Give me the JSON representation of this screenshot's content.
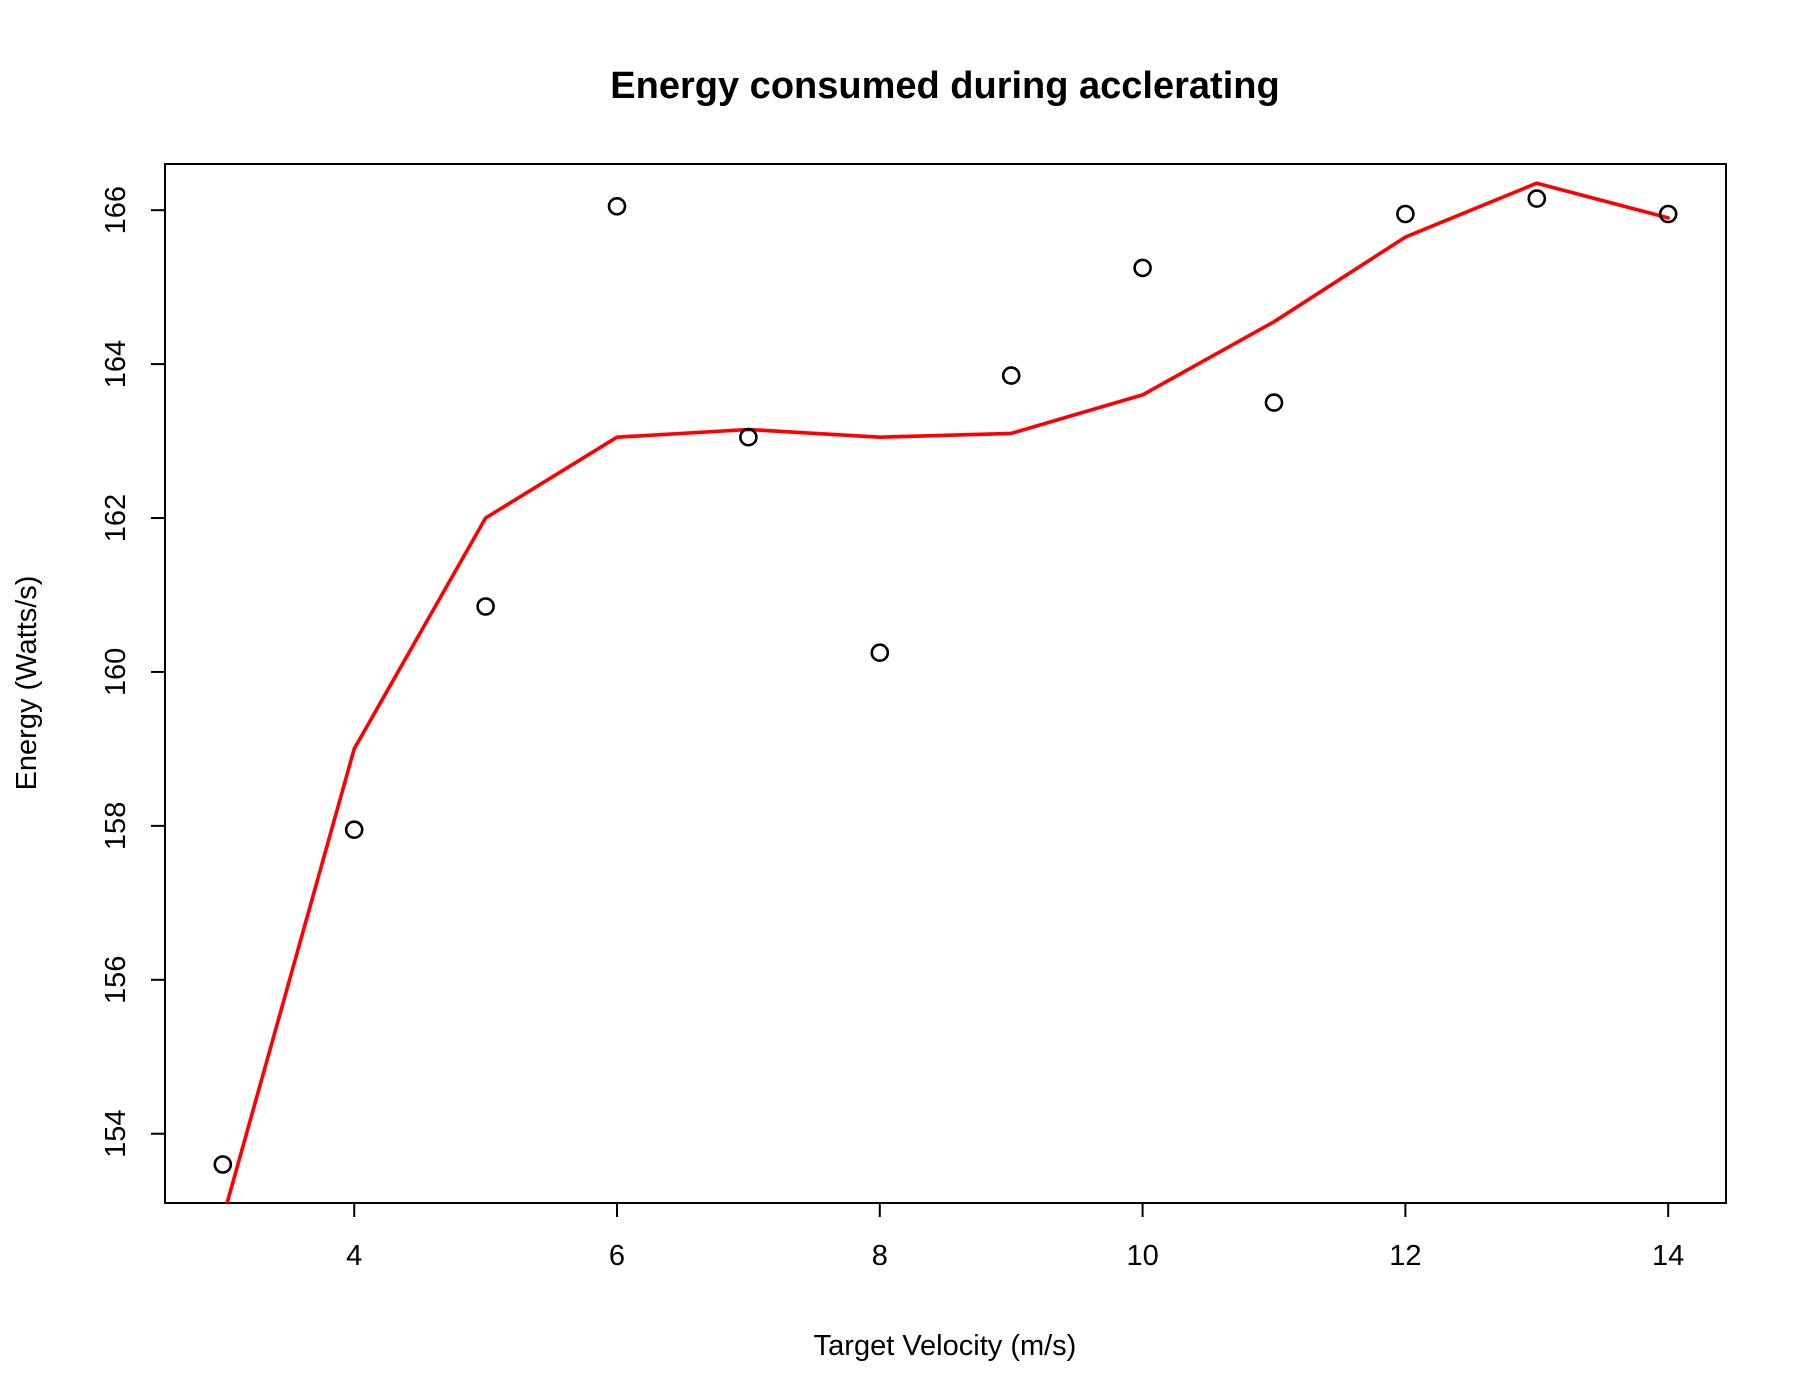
{
  "chart_data": {
    "type": "scatter",
    "title": "Energy consumed during acclerating",
    "xlabel": "Target Velocity (m/s)",
    "ylabel": "Energy (Watts/s)",
    "xlim": [
      2.56,
      14.44
    ],
    "ylim": [
      153.1,
      166.6
    ],
    "xticks": [
      4,
      6,
      8,
      10,
      12,
      14
    ],
    "yticks": [
      154,
      156,
      158,
      160,
      162,
      164,
      166
    ],
    "grid": false,
    "legend": "none",
    "series": [
      {
        "type": "points",
        "marker": "open-circle",
        "color": "#000000",
        "x": [
          3,
          4,
          5,
          6,
          7,
          8,
          9,
          10,
          11,
          12,
          13,
          14
        ],
        "y": [
          153.6,
          157.95,
          160.85,
          166.05,
          163.05,
          160.25,
          163.85,
          165.25,
          163.5,
          165.95,
          166.15,
          165.95
        ]
      },
      {
        "type": "line",
        "color": "#ff0000",
        "x": [
          3,
          4,
          5,
          6,
          7,
          8,
          9,
          10,
          11,
          12,
          13,
          14
        ],
        "y": [
          152.9,
          159.0,
          162.0,
          163.05,
          163.15,
          163.05,
          163.1,
          163.6,
          164.55,
          165.65,
          166.35,
          165.9
        ]
      }
    ]
  }
}
